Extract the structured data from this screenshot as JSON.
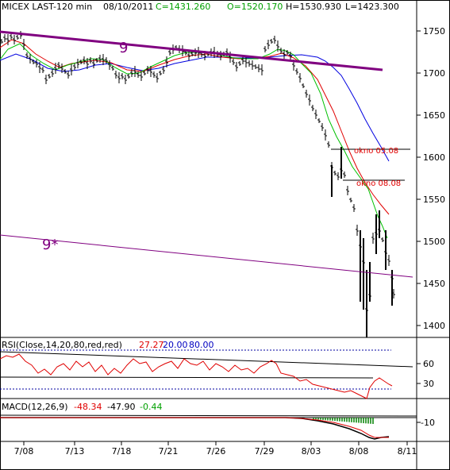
{
  "header": {
    "symbol": "MICEX LAST-120 min",
    "date": "08/10/2011",
    "close": "C=1431.260",
    "open": "O=1520.170",
    "high": "H=1530.930",
    "low": "L=1423.300"
  },
  "price_panel": {
    "y_ticks": [
      "1750",
      "1700",
      "1650",
      "1600",
      "1550",
      "1500",
      "1450",
      "1400"
    ],
    "y_tick_values": [
      1750,
      1700,
      1650,
      1600,
      1550,
      1500,
      1450,
      1400
    ],
    "labels": {
      "trend_9": "9",
      "trend_9_star": "9*",
      "okno_1": "okno 05.08",
      "okno_2": "okno 08.08"
    }
  },
  "rsi_panel": {
    "title": "RSI(Close,14,20,80,red,red)",
    "value": "27.27",
    "lower": "20.00",
    "upper": "80.00",
    "y_ticks": [
      "60",
      "30"
    ]
  },
  "macd_panel": {
    "title": "MACD(12,26,9)",
    "macd": "-48.34",
    "signal": "-47.90",
    "hist": "-0.44",
    "y_ticks": [
      "-10"
    ]
  },
  "x_axis": {
    "ticks": [
      "7/08",
      "7/13",
      "7/18",
      "7/21",
      "7/26",
      "7/29",
      "8/03",
      "8/08",
      "8/11"
    ]
  },
  "colors": {
    "price": "#000000",
    "ma_fast": "#00c000",
    "ma_mid": "#e00000",
    "ma_slow": "#0000e0",
    "trendline": "#800080",
    "rsi": "#e00000",
    "guide": "#0000a0",
    "macd": "#000000",
    "macd_signal": "#e00000",
    "histogram": "#008000"
  },
  "chart_data": {
    "type": "line",
    "title": "MICEX LAST-120 min",
    "x": [
      "7/08",
      "7/13",
      "7/18",
      "7/21",
      "7/26",
      "7/29",
      "8/03",
      "8/08",
      "8/11"
    ],
    "ylim": [
      1383,
      1770
    ],
    "series": [
      {
        "name": "close",
        "values": [
          1705,
          1695,
          1700,
          1715,
          1712,
          1722,
          1655,
          1520,
          1431
        ]
      }
    ],
    "grid": false
  }
}
